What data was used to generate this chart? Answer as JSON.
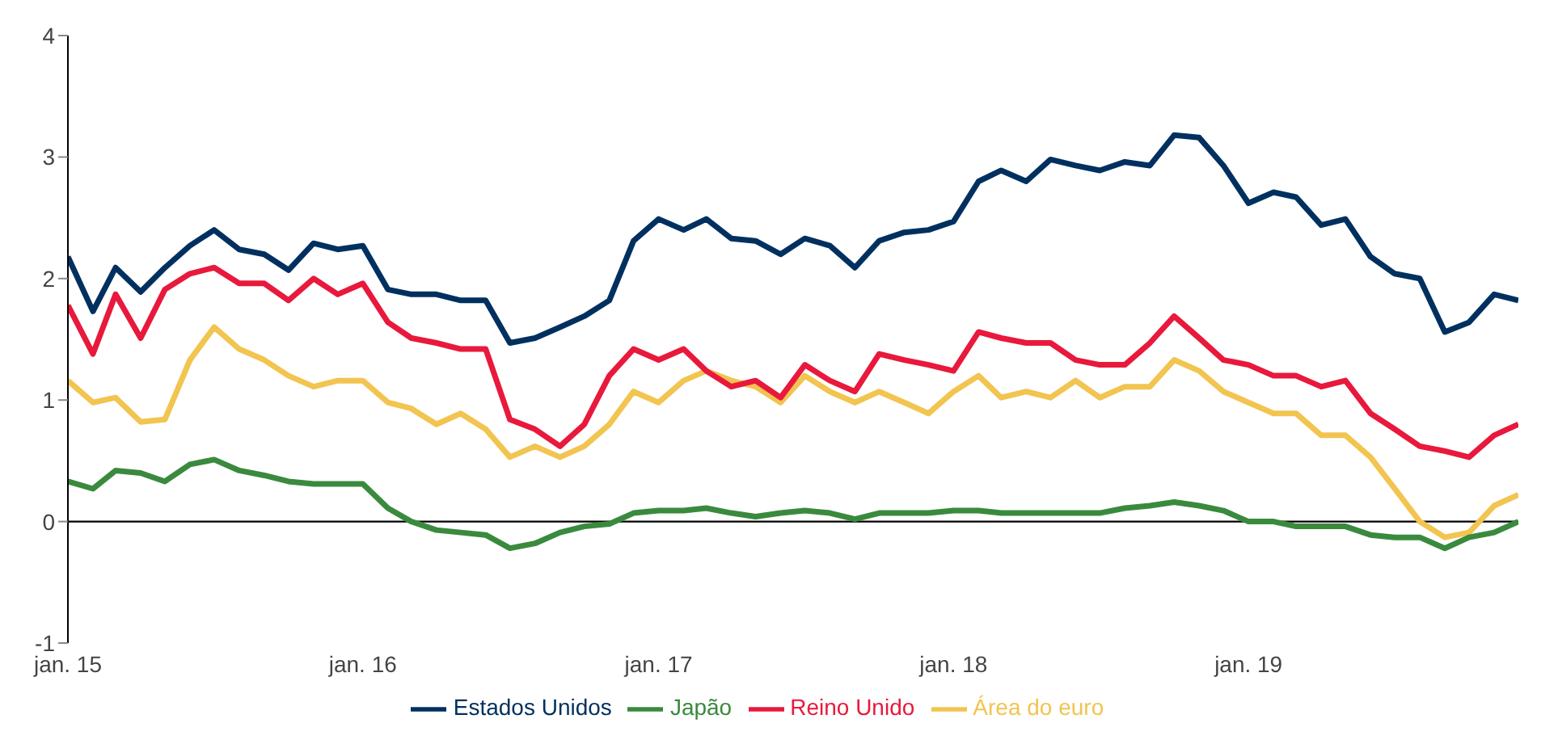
{
  "chart_data": {
    "type": "line",
    "x": [
      "2015-01",
      "2015-02",
      "2015-03",
      "2015-04",
      "2015-05",
      "2015-06",
      "2015-07",
      "2015-08",
      "2015-09",
      "2015-10",
      "2015-11",
      "2015-12",
      "2016-01",
      "2016-02",
      "2016-03",
      "2016-04",
      "2016-05",
      "2016-06",
      "2016-07",
      "2016-08",
      "2016-09",
      "2016-10",
      "2016-11",
      "2016-12",
      "2017-01",
      "2017-02",
      "2017-03",
      "2017-04",
      "2017-05",
      "2017-06",
      "2017-07",
      "2017-08",
      "2017-09",
      "2017-10",
      "2017-11",
      "2017-12",
      "2018-01",
      "2018-02",
      "2018-03",
      "2018-04",
      "2018-05",
      "2018-06",
      "2018-07",
      "2018-08",
      "2018-09",
      "2018-10",
      "2018-11",
      "2018-12",
      "2019-01",
      "2019-02",
      "2019-03",
      "2019-04",
      "2019-05",
      "2019-06",
      "2019-07",
      "2019-08",
      "2019-09",
      "2019-10",
      "2019-11",
      "2019-12"
    ],
    "series": [
      {
        "name": "Área do euro",
        "color": "#f2c450",
        "values": [
          1.16,
          0.98,
          1.02,
          0.82,
          0.84,
          1.33,
          1.6,
          1.42,
          1.33,
          1.2,
          1.11,
          1.16,
          1.16,
          0.98,
          0.93,
          0.8,
          0.89,
          0.76,
          0.53,
          0.62,
          0.53,
          0.62,
          0.8,
          1.07,
          0.98,
          1.16,
          1.24,
          1.16,
          1.11,
          0.98,
          1.2,
          1.07,
          0.98,
          1.07,
          0.98,
          0.89,
          1.07,
          1.2,
          1.02,
          1.07,
          1.02,
          1.16,
          1.02,
          1.11,
          1.11,
          1.33,
          1.24,
          1.07,
          0.98,
          0.89,
          0.89,
          0.71,
          0.71,
          0.53,
          0.27,
          0,
          -0.13,
          -0.09,
          0.13,
          0.22
        ]
      },
      {
        "name": "Estados Unidos",
        "color": "#00305f",
        "values": [
          2.18,
          1.73,
          2.09,
          1.89,
          2.09,
          2.27,
          2.4,
          2.24,
          2.2,
          2.07,
          2.29,
          2.24,
          2.27,
          1.91,
          1.87,
          1.87,
          1.82,
          1.82,
          1.47,
          1.51,
          1.6,
          1.69,
          1.82,
          2.31,
          2.49,
          2.4,
          2.49,
          2.33,
          2.31,
          2.2,
          2.33,
          2.27,
          2.09,
          2.31,
          2.38,
          2.4,
          2.47,
          2.8,
          2.89,
          2.8,
          2.98,
          2.93,
          2.89,
          2.96,
          2.93,
          3.18,
          3.16,
          2.93,
          2.62,
          2.71,
          2.67,
          2.44,
          2.49,
          2.18,
          2.04,
          2,
          1.56,
          1.64,
          1.87,
          1.82
        ]
      },
      {
        "name": "Reino Unido",
        "color": "#e8193c",
        "values": [
          1.78,
          1.38,
          1.87,
          1.51,
          1.91,
          2.04,
          2.09,
          1.96,
          1.96,
          1.82,
          2,
          1.87,
          1.96,
          1.64,
          1.51,
          1.47,
          1.42,
          1.42,
          0.84,
          0.76,
          0.62,
          0.8,
          1.2,
          1.42,
          1.33,
          1.42,
          1.24,
          1.11,
          1.16,
          1.02,
          1.29,
          1.16,
          1.07,
          1.38,
          1.33,
          1.29,
          1.24,
          1.56,
          1.51,
          1.47,
          1.47,
          1.33,
          1.29,
          1.29,
          1.47,
          1.69,
          1.51,
          1.33,
          1.29,
          1.2,
          1.2,
          1.11,
          1.16,
          0.89,
          0.76,
          0.62,
          0.58,
          0.53,
          0.71,
          0.8
        ]
      },
      {
        "name": "Japão",
        "color": "#3a8a3e",
        "values": [
          0.33,
          0.27,
          0.42,
          0.4,
          0.33,
          0.47,
          0.51,
          0.42,
          0.38,
          0.33,
          0.31,
          0.31,
          0.31,
          0.11,
          0,
          -0.07,
          -0.09,
          -0.11,
          -0.22,
          -0.18,
          -0.09,
          -0.04,
          -0.02,
          0.07,
          0.09,
          0.09,
          0.11,
          0.07,
          0.04,
          0.07,
          0.09,
          0.07,
          0.02,
          0.07,
          0.07,
          0.07,
          0.09,
          0.09,
          0.07,
          0.07,
          0.07,
          0.07,
          0.07,
          0.11,
          0.13,
          0.16,
          0.13,
          0.09,
          0,
          0,
          -0.04,
          -0.04,
          -0.04,
          -0.11,
          -0.13,
          -0.13,
          -0.22,
          -0.13,
          -0.09,
          0
        ]
      }
    ],
    "xlim": [
      "2015-01",
      "2019-12"
    ],
    "xticks": [
      {
        "value": "2015-01",
        "label": "jan. 15"
      },
      {
        "value": "2016-01",
        "label": "jan. 16"
      },
      {
        "value": "2017-01",
        "label": "jan. 17"
      },
      {
        "value": "2018-01",
        "label": "jan. 18"
      },
      {
        "value": "2019-01",
        "label": "jan. 19"
      }
    ],
    "ylim": [
      -1,
      4
    ],
    "yticks": [
      -1,
      0,
      1,
      2,
      3,
      4
    ],
    "ref_lines": [
      {
        "axis": "y",
        "value": 0,
        "color": "#000000"
      }
    ],
    "grid": false,
    "legend": "bottom",
    "marker": "none",
    "line_style": "solid"
  }
}
